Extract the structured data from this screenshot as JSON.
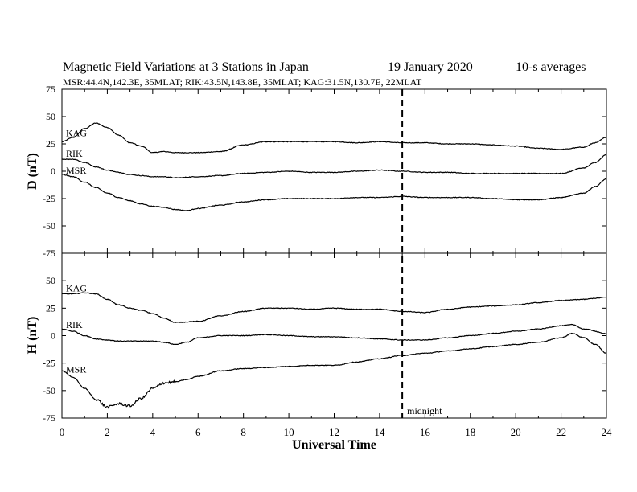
{
  "header": {
    "title": "Magnetic Field Variations at 3 Stations in Japan",
    "date": "19 January  2020",
    "averaging": "10-s averages",
    "stations_line": "MSR:44.4N,142.3E, 35MLAT;  RIK:43.5N,143.8E, 35MLAT;  KAG:31.5N,130.7E, 22MLAT"
  },
  "chart_data": [
    {
      "type": "line",
      "panel": "top",
      "ylabel": "D (nT)",
      "ylim": [
        -75,
        75
      ],
      "yticks": [
        -75,
        -50,
        -25,
        0,
        25,
        50,
        75
      ],
      "x_unit": "Universal Time (hours)",
      "xlim": [
        0,
        24
      ],
      "series": [
        {
          "name": "KAG",
          "x": [
            0,
            0.5,
            1.0,
            1.5,
            2.0,
            2.5,
            3.0,
            3.5,
            4.0,
            4.5,
            5.0,
            6.0,
            7.0,
            8.0,
            9.0,
            10.0,
            11.0,
            12.0,
            13.0,
            14.0,
            15.0,
            16.0,
            17.0,
            18.0,
            19.0,
            20.0,
            21.0,
            22.0,
            23.0,
            23.5,
            24.0
          ],
          "values": [
            27,
            31,
            39,
            44,
            40,
            33,
            26,
            23,
            17,
            18,
            17,
            17,
            18,
            24,
            27,
            27,
            27,
            27,
            26,
            27,
            26,
            26,
            25,
            25,
            24,
            23,
            21,
            20,
            22,
            26,
            31
          ]
        },
        {
          "name": "RIK",
          "x": [
            0,
            0.5,
            1.0,
            1.5,
            2.0,
            2.5,
            3.0,
            3.5,
            4.0,
            4.5,
            5.0,
            6.0,
            7.0,
            8.0,
            9.0,
            10.0,
            11.0,
            12.0,
            13.0,
            14.0,
            15.0,
            16.0,
            17.0,
            18.0,
            19.0,
            20.0,
            21.0,
            22.0,
            23.0,
            23.5,
            24.0
          ],
          "values": [
            11,
            11,
            8,
            4,
            1,
            -1,
            -3,
            -4,
            -5,
            -5,
            -6,
            -5,
            -4,
            -2,
            -1,
            0,
            -1,
            -1,
            0,
            1,
            0,
            -1,
            -1,
            -2,
            -2,
            -2,
            -2,
            -2,
            3,
            8,
            15
          ]
        },
        {
          "name": "MSR",
          "x": [
            0,
            0.5,
            1.0,
            1.5,
            2.0,
            2.5,
            3.0,
            3.5,
            4.0,
            4.5,
            5.0,
            5.5,
            6.0,
            7.0,
            8.0,
            9.0,
            10.0,
            11.0,
            12.0,
            13.0,
            14.0,
            15.0,
            16.0,
            17.0,
            18.0,
            19.0,
            20.0,
            21.0,
            22.0,
            23.0,
            23.5,
            24.0
          ],
          "values": [
            -3,
            -5,
            -10,
            -15,
            -20,
            -24,
            -27,
            -30,
            -32,
            -33,
            -35,
            -36,
            -34,
            -31,
            -28,
            -26,
            -25,
            -25,
            -25,
            -24,
            -24,
            -23,
            -24,
            -24,
            -24,
            -25,
            -26,
            -26,
            -24,
            -20,
            -14,
            -7
          ]
        }
      ]
    },
    {
      "type": "line",
      "panel": "bottom",
      "ylabel": "H (nT)",
      "ylim": [
        -75,
        75
      ],
      "yticks": [
        -75,
        -50,
        -25,
        0,
        25,
        50
      ],
      "xlabel": "Universal Time",
      "xlim": [
        0,
        24
      ],
      "xticks": [
        0,
        2,
        4,
        6,
        8,
        10,
        12,
        14,
        16,
        18,
        20,
        22,
        24
      ],
      "series": [
        {
          "name": "KAG",
          "x": [
            0,
            0.5,
            1.0,
            1.5,
            2.0,
            2.5,
            3.0,
            3.5,
            4.0,
            4.5,
            5.0,
            6.0,
            7.0,
            8.0,
            9.0,
            10.0,
            11.0,
            12.0,
            13.0,
            14.0,
            15.0,
            16.0,
            17.0,
            18.0,
            19.0,
            20.0,
            21.0,
            22.0,
            23.0,
            23.5,
            24.0
          ],
          "values": [
            38,
            38,
            39,
            38,
            33,
            28,
            25,
            23,
            20,
            16,
            12,
            13,
            18,
            22,
            25,
            25,
            24,
            25,
            24,
            24,
            22,
            21,
            24,
            26,
            27,
            28,
            30,
            32,
            33,
            34,
            35
          ]
        },
        {
          "name": "RIK",
          "x": [
            0,
            0.5,
            1.0,
            1.5,
            2.0,
            2.5,
            3.0,
            3.5,
            4.0,
            4.5,
            5.0,
            5.5,
            6.0,
            7.0,
            8.0,
            9.0,
            10.0,
            11.0,
            12.0,
            13.0,
            14.0,
            15.0,
            16.0,
            17.0,
            18.0,
            19.0,
            20.0,
            21.0,
            22.0,
            22.5,
            23.0,
            24.0
          ],
          "values": [
            6,
            4,
            0,
            -3,
            -4,
            -5,
            -5,
            -5,
            -5,
            -6,
            -8,
            -6,
            -2,
            0,
            0,
            1,
            0,
            -1,
            -1,
            -2,
            -3,
            -4,
            -4,
            -2,
            0,
            2,
            4,
            6,
            9,
            10,
            6,
            2
          ]
        },
        {
          "name": "MSR",
          "x": [
            0,
            0.5,
            1.0,
            1.5,
            2.0,
            2.5,
            3.0,
            3.5,
            4.0,
            4.5,
            5.0,
            5.5,
            6.0,
            7.0,
            8.0,
            9.0,
            10.0,
            11.0,
            12.0,
            13.0,
            14.0,
            15.0,
            16.0,
            17.0,
            18.0,
            19.0,
            20.0,
            21.0,
            22.0,
            22.5,
            23.0,
            23.5,
            24.0
          ],
          "values": [
            -32,
            -38,
            -48,
            -58,
            -65,
            -62,
            -64,
            -57,
            -48,
            -43,
            -42,
            -40,
            -37,
            -32,
            -30,
            -29,
            -28,
            -27,
            -27,
            -24,
            -21,
            -18,
            -16,
            -14,
            -12,
            -10,
            -8,
            -6,
            -2,
            2,
            -2,
            -8,
            -16
          ]
        }
      ]
    }
  ],
  "annotations": {
    "midnight_label": "midnight",
    "midnight_ut": 15
  }
}
